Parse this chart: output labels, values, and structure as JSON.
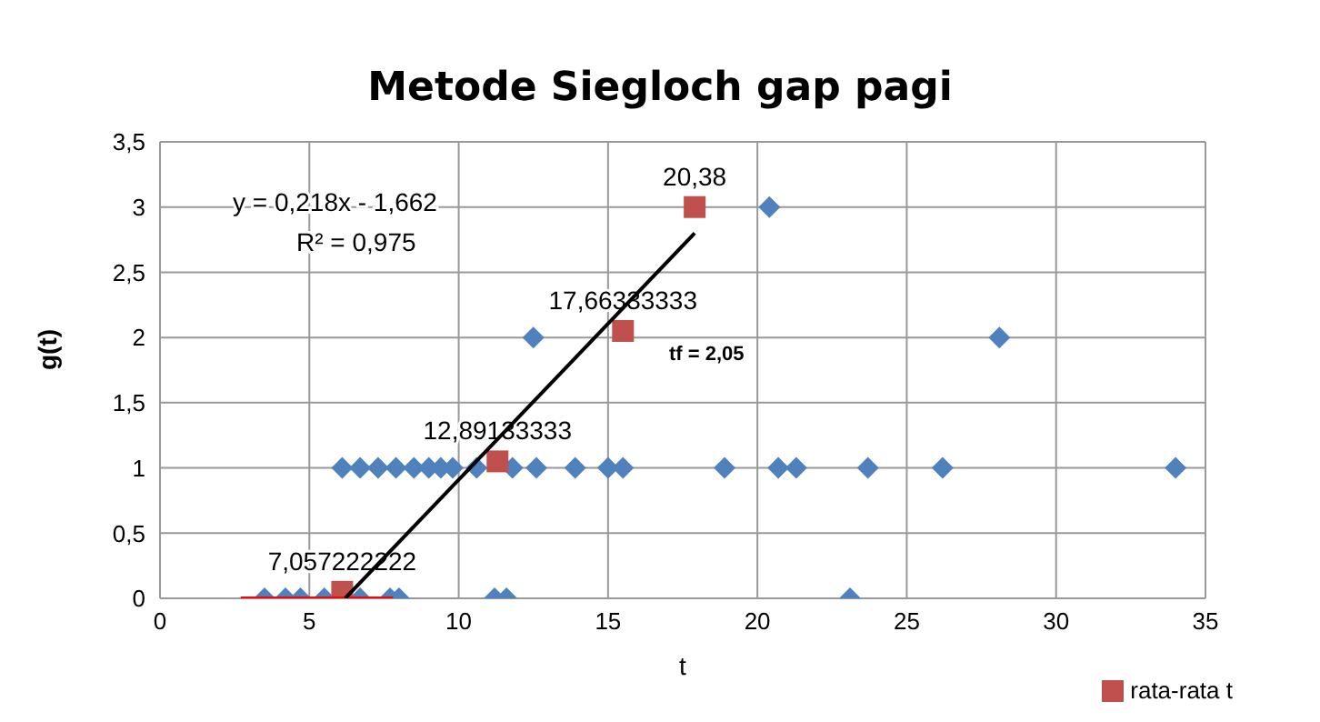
{
  "chart_data": {
    "type": "scatter",
    "title": "Metode Siegloch gap pagi",
    "xlabel": "t",
    "ylabel": "g(t)",
    "xlim": [
      0,
      35
    ],
    "xticks": [
      0,
      5,
      10,
      15,
      20,
      25,
      30,
      35
    ],
    "ylim": [
      0,
      3.5
    ],
    "yticks": [
      0,
      {
        "value": 0.5,
        "label": "0,5"
      },
      1,
      {
        "value": 1.5,
        "label": "1,5"
      },
      2,
      {
        "value": 2.5,
        "label": "2,5"
      },
      3,
      {
        "value": 3.5,
        "label": "3,5"
      }
    ],
    "grid": true,
    "legend": "bottom right",
    "series": [
      {
        "marker": "diamond",
        "color": "#4f81bd",
        "x": [
          3.5,
          4.2,
          4.7,
          5.5,
          6.7,
          7.7,
          8.0,
          11.2,
          11.6,
          23.1,
          6.1,
          6.7,
          7.3,
          7.9,
          8.5,
          9.0,
          9.4,
          9.8,
          10.6,
          11.0,
          11.8,
          12.4,
          12.6,
          13.9,
          15.0,
          15.5,
          18.9,
          20.7,
          21.3,
          23.7,
          26.2,
          34.0,
          12.5,
          28.1,
          20.4
        ],
        "values": [
          0,
          0,
          0,
          0,
          0,
          0,
          0,
          0,
          0,
          0,
          1,
          1,
          1,
          1,
          1,
          1,
          1,
          1,
          1,
          null,
          1,
          null,
          1,
          1,
          1,
          1,
          1,
          1,
          1,
          1,
          1,
          1,
          2,
          2,
          3
        ]
      },
      {
        "marker": "square",
        "name": "rata-rata t",
        "color": "#c0504d",
        "x": [
          6.1,
          11.3,
          15.5,
          17.9
        ],
        "values": [
          0.05,
          1.05,
          2.05,
          3.0
        ]
      },
      {
        "type": "line",
        "marker": "none",
        "color": "#ff0000",
        "x": [
          2.7,
          7.8
        ],
        "values": [
          0,
          0
        ]
      },
      {
        "type": "line",
        "marker": "none",
        "color": "#000000",
        "x": [
          6.2,
          17.9
        ],
        "values": [
          0,
          2.8
        ]
      }
    ],
    "annotations": [
      "y = 0,218x - 1,662",
      "R² = 0,975",
      "tf = 2,05",
      {
        "text": "7,057222222",
        "x": 6.1,
        "y": 0.05
      },
      {
        "text": "12,89133333",
        "x": 11.3,
        "y": 1.05
      },
      {
        "text": "17,66333333",
        "x": 15.5,
        "y": 2.05
      },
      {
        "text": "20,38",
        "x": 17.9,
        "y": 3.0
      }
    ]
  }
}
